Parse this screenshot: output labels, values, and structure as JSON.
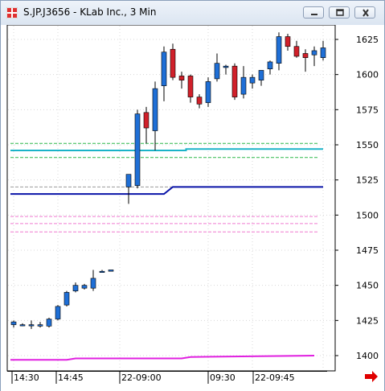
{
  "window": {
    "title": "S.JP.J3656 - KLab Inc., 3 Min",
    "buttons": [
      "minimize",
      "restore",
      "close"
    ]
  },
  "colors": {
    "up_candle": "#1f6fd6",
    "down_candle": "#d0202a",
    "ma_cyan": "#1bb3c8",
    "band_green": "#2fb84a",
    "navy_line": "#0a14a8",
    "magenta_line": "#e020e0",
    "band_pink": "#f07ad0",
    "scroll_arrow": "#e00000"
  },
  "icons": {
    "scroll_right": "arrow-right-icon",
    "app": "app-logo-icon"
  },
  "chart_data": {
    "type": "candlestick",
    "title": "S.JP.J3656 - KLab Inc., 3 Min",
    "y_ticks": [
      "1625",
      "1600",
      "1575",
      "1550",
      "1525",
      "1500",
      "1475",
      "1450",
      "1425",
      "1400"
    ],
    "x_ticks": [
      "14:30",
      "14:45",
      "22-09:00",
      "09:30",
      "22-09:45"
    ],
    "ylim": [
      1389,
      1640
    ],
    "candles": [
      {
        "o": 1422,
        "h": 1425,
        "l": 1420,
        "c": 1424
      },
      {
        "o": 1422,
        "h": 1423,
        "l": 1421,
        "c": 1422
      },
      {
        "o": 1422,
        "h": 1425,
        "l": 1419,
        "c": 1422
      },
      {
        "o": 1421,
        "h": 1424,
        "l": 1420,
        "c": 1422
      },
      {
        "o": 1421,
        "h": 1427,
        "l": 1420,
        "c": 1426
      },
      {
        "o": 1426,
        "h": 1436,
        "l": 1425,
        "c": 1435
      },
      {
        "o": 1436,
        "h": 1446,
        "l": 1435,
        "c": 1445
      },
      {
        "o": 1446,
        "h": 1452,
        "l": 1445,
        "c": 1450
      },
      {
        "o": 1448,
        "h": 1451,
        "l": 1447,
        "c": 1450
      },
      {
        "o": 1448,
        "h": 1461,
        "l": 1446,
        "c": 1455
      },
      {
        "o": 1460,
        "h": 1461,
        "l": 1459,
        "c": 1460
      },
      {
        "o": 1460,
        "h": 1461,
        "l": 1460,
        "c": 1461
      },
      {
        "o": 1520,
        "h": 1529,
        "l": 1508,
        "c": 1529
      },
      {
        "o": 1521,
        "h": 1575,
        "l": 1519,
        "c": 1572
      },
      {
        "o": 1573,
        "h": 1577,
        "l": 1551,
        "c": 1562
      },
      {
        "o": 1560,
        "h": 1595,
        "l": 1546,
        "c": 1590
      },
      {
        "o": 1592,
        "h": 1620,
        "l": 1581,
        "c": 1616
      },
      {
        "o": 1618,
        "h": 1622,
        "l": 1596,
        "c": 1598
      },
      {
        "o": 1599,
        "h": 1602,
        "l": 1590,
        "c": 1596
      },
      {
        "o": 1599,
        "h": 1600,
        "l": 1580,
        "c": 1584
      },
      {
        "o": 1584,
        "h": 1586,
        "l": 1576,
        "c": 1579
      },
      {
        "o": 1580,
        "h": 1598,
        "l": 1577,
        "c": 1595
      },
      {
        "o": 1597,
        "h": 1615,
        "l": 1595,
        "c": 1608
      },
      {
        "o": 1605,
        "h": 1607,
        "l": 1600,
        "c": 1606
      },
      {
        "o": 1606,
        "h": 1608,
        "l": 1582,
        "c": 1584
      },
      {
        "o": 1586,
        "h": 1606,
        "l": 1583,
        "c": 1598
      },
      {
        "o": 1594,
        "h": 1600,
        "l": 1590,
        "c": 1598
      },
      {
        "o": 1596,
        "h": 1603,
        "l": 1592,
        "c": 1603
      },
      {
        "o": 1604,
        "h": 1610,
        "l": 1600,
        "c": 1609
      },
      {
        "o": 1608,
        "h": 1630,
        "l": 1603,
        "c": 1627
      },
      {
        "o": 1627,
        "h": 1629,
        "l": 1617,
        "c": 1620
      },
      {
        "o": 1620,
        "h": 1624,
        "l": 1612,
        "c": 1613
      },
      {
        "o": 1615,
        "h": 1618,
        "l": 1602,
        "c": 1612
      },
      {
        "o": 1614,
        "h": 1620,
        "l": 1606,
        "c": 1617
      },
      {
        "o": 1612,
        "h": 1624,
        "l": 1610,
        "c": 1619
      }
    ],
    "lines": [
      {
        "name": "",
        "color": "#1bb3c8",
        "points": [
          [
            0,
            1546
          ],
          [
            18.5,
            1546
          ],
          [
            18.5,
            1547
          ],
          [
            34,
            1547
          ]
        ]
      },
      {
        "name": "",
        "color": "#0a14a8",
        "points": [
          [
            0,
            1515
          ],
          [
            16,
            1515
          ],
          [
            17,
            1520
          ],
          [
            34,
            1520
          ]
        ]
      },
      {
        "name": "",
        "color": "#e020e0",
        "points": [
          [
            0,
            1397
          ],
          [
            6,
            1397
          ],
          [
            7,
            1398
          ],
          [
            18,
            1398
          ],
          [
            19,
            1399
          ],
          [
            33,
            1400
          ]
        ]
      }
    ],
    "horizontal_levels": [
      {
        "value": 1551,
        "color": "#2fb84a",
        "style": "dashed"
      },
      {
        "value": 1541,
        "color": "#2fb84a",
        "style": "dashed"
      },
      {
        "value": 1520,
        "color": "#9a9a9a",
        "style": "dashed"
      },
      {
        "value": 1499,
        "color": "#f07ad0",
        "style": "dashed"
      },
      {
        "value": 1494,
        "color": "#f07ad0",
        "style": "dashed"
      },
      {
        "value": 1488,
        "color": "#f07ad0",
        "style": "dashed"
      }
    ],
    "grid": true
  }
}
